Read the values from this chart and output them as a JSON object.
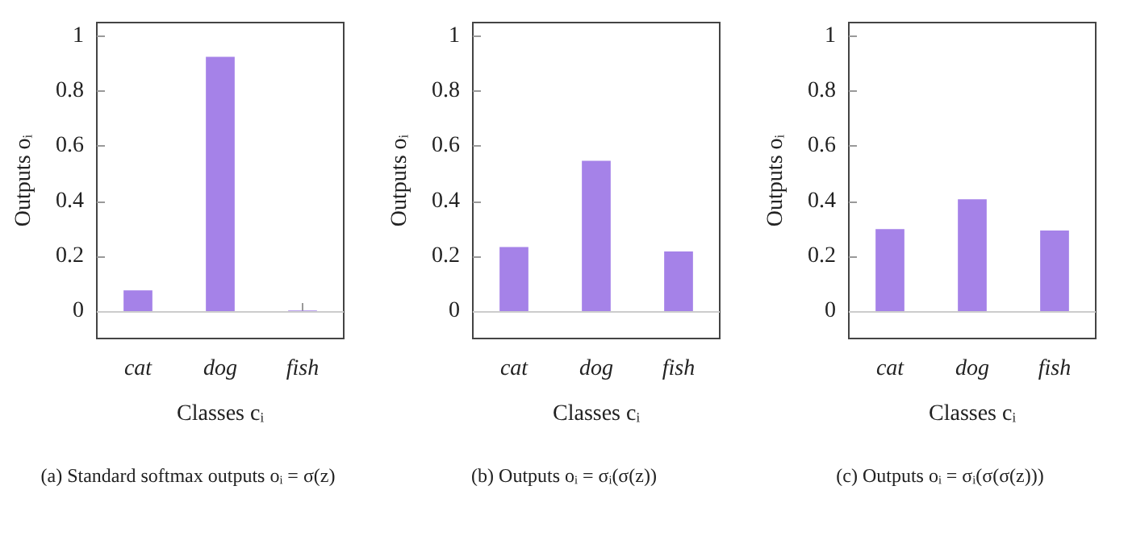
{
  "chart_data": [
    {
      "type": "bar",
      "categories": [
        "cat",
        "dog",
        "fish"
      ],
      "values": [
        0.075,
        0.925,
        0.002
      ],
      "color": "#a582e8",
      "xlabel": "Classes cᵢ",
      "ylabel": "Outputs oᵢ",
      "ylim": [
        -0.1,
        1.05
      ],
      "yticks": [
        0,
        0.2,
        0.4,
        0.6,
        0.8,
        1
      ],
      "grid": false,
      "ref_lines": [
        {
          "axis": "y",
          "value": 0,
          "color": "#cccccc"
        }
      ],
      "annotations": [
        "(a) Standard softmax outputs oᵢ = σ(z)"
      ]
    },
    {
      "type": "bar",
      "categories": [
        "cat",
        "dog",
        "fish"
      ],
      "values": [
        0.233,
        0.547,
        0.217
      ],
      "color": "#a582e8",
      "xlabel": "Classes cᵢ",
      "ylabel": "Outputs oᵢ",
      "ylim": [
        -0.1,
        1.05
      ],
      "yticks": [
        0,
        0.2,
        0.4,
        0.6,
        0.8,
        1
      ],
      "grid": false,
      "ref_lines": [
        {
          "axis": "y",
          "value": 0,
          "color": "#cccccc"
        }
      ],
      "annotations": [
        "(b) Outputs oᵢ = σᵢ(σ(z))"
      ]
    },
    {
      "type": "bar",
      "categories": [
        "cat",
        "dog",
        "fish"
      ],
      "values": [
        0.298,
        0.407,
        0.293
      ],
      "color": "#a582e8",
      "xlabel": "Classes cᵢ",
      "ylabel": "Outputs oᵢ",
      "ylim": [
        -0.1,
        1.05
      ],
      "yticks": [
        0,
        0.2,
        0.4,
        0.6,
        0.8,
        1
      ],
      "grid": false,
      "ref_lines": [
        {
          "axis": "y",
          "value": 0,
          "color": "#cccccc"
        }
      ],
      "annotations": [
        "(c) Outputs oᵢ = σᵢ(σ(σ(z)))"
      ]
    }
  ]
}
